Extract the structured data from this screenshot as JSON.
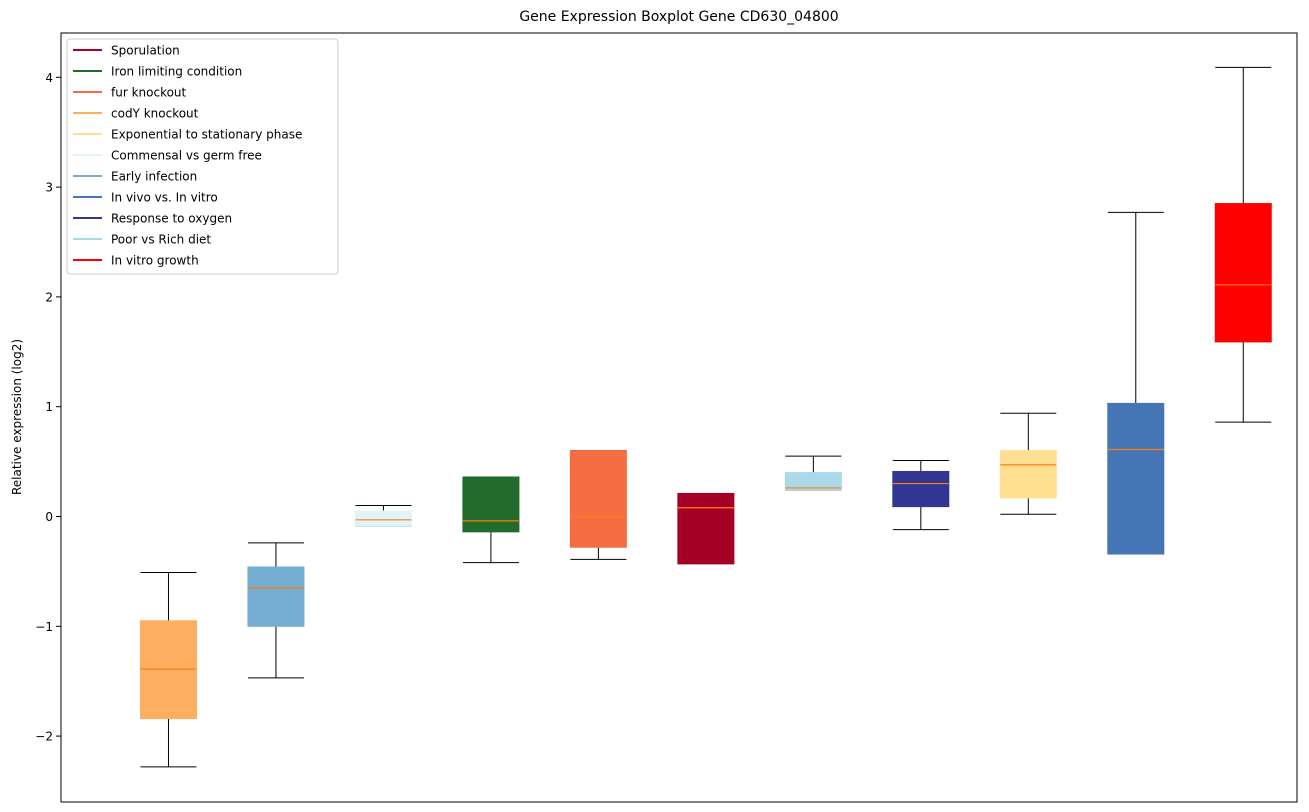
{
  "chart_data": {
    "type": "boxplot",
    "title": "Gene Expression Boxplot Gene CD630_04800",
    "xlabel": "",
    "ylabel": "Relative expression (log2)",
    "ylim": [
      -2.6,
      4.4
    ],
    "yticks": [
      -2,
      -1,
      0,
      1,
      2,
      3,
      4
    ],
    "ytick_labels": [
      "−2",
      "−1",
      "0",
      "1",
      "2",
      "3",
      "4"
    ],
    "grid": false,
    "legend_position": "top-left",
    "legend": [
      {
        "label": "Sporulation",
        "color": "#a50026"
      },
      {
        "label": "Iron limiting condition",
        "color": "#236b2c"
      },
      {
        "label": "fur knockout",
        "color": "#f46d43"
      },
      {
        "label": "codY knockout",
        "color": "#fdae61"
      },
      {
        "label": "Exponential to stationary phase",
        "color": "#fee090"
      },
      {
        "label": "Commensal vs germ free",
        "color": "#e0f3f8"
      },
      {
        "label": "Early infection",
        "color": "#74add1"
      },
      {
        "label": "In vivo vs. In vitro",
        "color": "#4575b4"
      },
      {
        "label": "Response to oxygen",
        "color": "#313695"
      },
      {
        "label": "Poor vs Rich diet",
        "color": "#abd9e9"
      },
      {
        "label": "In vitro growth",
        "color": "#ff0000"
      }
    ],
    "boxes": [
      {
        "group": "codY knockout",
        "color": "#fdae61",
        "whislo": -2.28,
        "q1": -1.84,
        "med": -1.39,
        "q3": -0.95,
        "whishi": -0.51
      },
      {
        "group": "Early infection",
        "color": "#74add1",
        "whislo": -1.47,
        "q1": -1.0,
        "med": -0.65,
        "q3": -0.46,
        "whishi": -0.24
      },
      {
        "group": "Commensal vs germ free",
        "color": "#e0f3f8",
        "whislo": -0.09,
        "q1": -0.09,
        "med": -0.03,
        "q3": 0.05,
        "whishi": 0.1
      },
      {
        "group": "Iron limiting condition",
        "color": "#236b2c",
        "whislo": -0.42,
        "q1": -0.14,
        "med": -0.04,
        "q3": 0.36,
        "whishi": 0.36
      },
      {
        "group": "fur knockout",
        "color": "#f46d43",
        "whislo": -0.39,
        "q1": -0.28,
        "med": 0.0,
        "q3": 0.6,
        "whishi": 0.6
      },
      {
        "group": "Sporulation",
        "color": "#a50026",
        "whislo": -0.43,
        "q1": -0.43,
        "med": 0.08,
        "q3": 0.21,
        "whishi": 0.21
      },
      {
        "group": "Poor vs Rich diet",
        "color": "#abd9e9",
        "whislo": 0.24,
        "q1": 0.24,
        "med": 0.26,
        "q3": 0.4,
        "whishi": 0.55
      },
      {
        "group": "Response to oxygen",
        "color": "#313695",
        "whislo": -0.12,
        "q1": 0.09,
        "med": 0.3,
        "q3": 0.41,
        "whishi": 0.51
      },
      {
        "group": "Exponential to stationary phase",
        "color": "#fee090",
        "whislo": 0.02,
        "q1": 0.17,
        "med": 0.47,
        "q3": 0.6,
        "whishi": 0.94
      },
      {
        "group": "In vivo vs. In vitro",
        "color": "#4575b4",
        "whislo": -0.34,
        "q1": -0.34,
        "med": 0.61,
        "q3": 1.03,
        "whishi": 2.77
      },
      {
        "group": "In vitro growth",
        "color": "#ff0000",
        "whislo": 0.86,
        "q1": 1.59,
        "med": 2.11,
        "q3": 2.85,
        "whishi": 4.09
      }
    ],
    "median_color": "#ff7f0e",
    "whisker_color": "#000000"
  }
}
